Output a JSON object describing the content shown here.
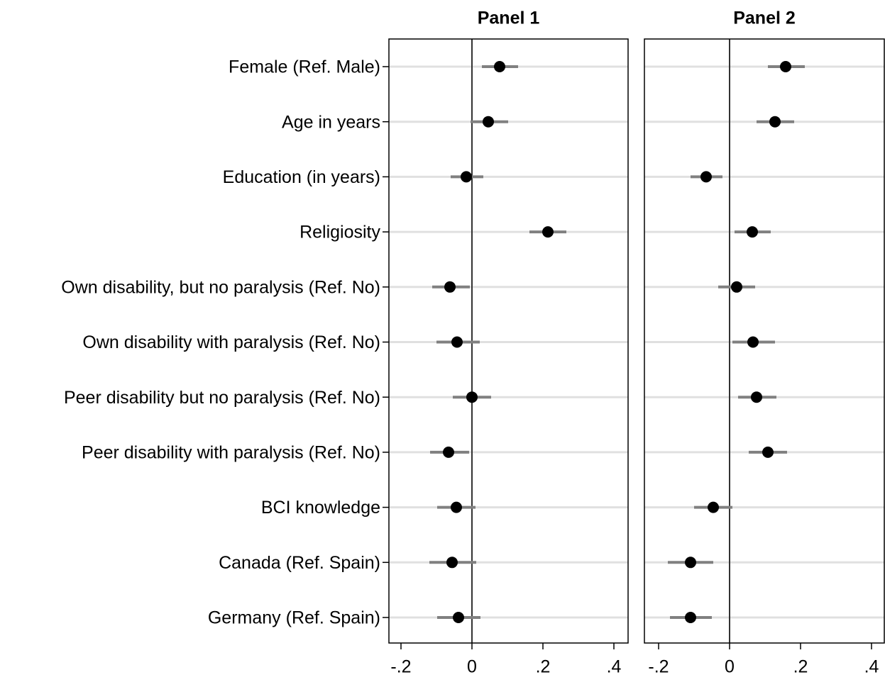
{
  "chart_data": [
    {
      "type": "coefplot",
      "title": "Panel 1",
      "categories": [
        "Female (Ref. Male)",
        "Age in years",
        "Education (in years)",
        "Religiosity",
        "Own disability, but no paralysis (Ref. No)",
        "Own disability with paralysis (Ref. No)",
        "Peer disability but no paralysis (Ref. No)",
        "Peer disability with paralysis (Ref. No)",
        "BCI knowledge",
        "Canada (Ref. Spain)",
        "Germany (Ref. Spain)"
      ],
      "values": [
        0.078,
        0.046,
        -0.016,
        0.214,
        -0.062,
        -0.042,
        0.0,
        -0.066,
        -0.044,
        -0.056,
        -0.038
      ],
      "ci_low": [
        0.028,
        -0.004,
        -0.06,
        0.162,
        -0.112,
        -0.1,
        -0.054,
        -0.118,
        -0.098,
        -0.12,
        -0.098
      ],
      "ci_high": [
        0.13,
        0.102,
        0.032,
        0.266,
        -0.006,
        0.022,
        0.054,
        -0.008,
        0.01,
        0.012,
        0.024
      ],
      "color": "#000000",
      "ci_color": "#808080",
      "xlim": [
        -0.234,
        0.44
      ],
      "xticks": [
        {
          "value": -0.2,
          "label": "-.2"
        },
        0,
        {
          "value": 0.2,
          "label": ".2"
        },
        {
          "value": 0.4,
          "label": ".4"
        }
      ]
    },
    {
      "type": "coefplot",
      "title": "Panel 2",
      "values": [
        0.158,
        0.128,
        -0.066,
        0.064,
        0.02,
        0.066,
        0.076,
        0.108,
        -0.046,
        -0.11,
        -0.11
      ],
      "ci_low": [
        0.108,
        0.076,
        -0.11,
        0.014,
        -0.032,
        0.008,
        0.024,
        0.054,
        -0.1,
        -0.174,
        -0.168
      ],
      "ci_high": [
        0.212,
        0.182,
        -0.02,
        0.116,
        0.072,
        0.128,
        0.132,
        0.162,
        0.008,
        -0.046,
        -0.05
      ],
      "color": "#000000",
      "ci_color": "#808080",
      "xlim": [
        -0.24,
        0.436
      ],
      "xticks": [
        {
          "value": -0.2,
          "label": "-.2"
        },
        0,
        {
          "value": 0.2,
          "label": ".2"
        },
        {
          "value": 0.4,
          "label": ".4"
        }
      ]
    }
  ]
}
